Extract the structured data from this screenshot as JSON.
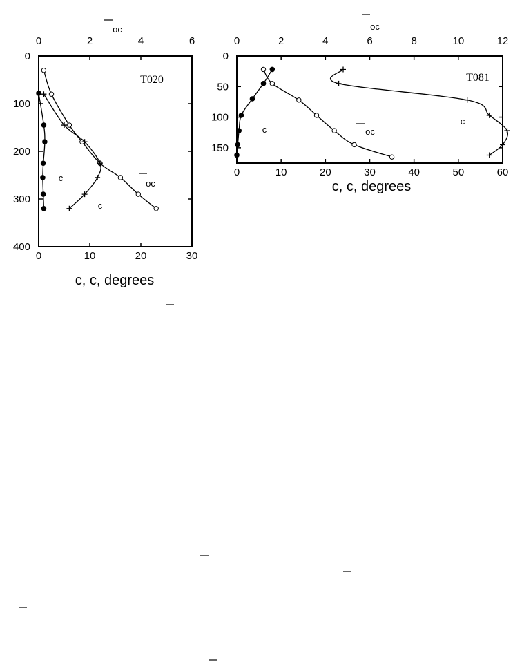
{
  "chart_data": [
    {
      "type": "line",
      "title": "T020",
      "x_bottom": {
        "label": "c,   c, degrees",
        "range": [
          0,
          30
        ],
        "ticks": [
          "0",
          "10",
          "20",
          "30"
        ]
      },
      "x_top": {
        "label": "oc",
        "range": [
          0,
          6
        ],
        "ticks": [
          "0",
          "2",
          "4",
          "6"
        ]
      },
      "y": {
        "range": [
          0,
          400
        ],
        "reversed": true,
        "ticks": [
          "0",
          "100",
          "200",
          "300",
          "400"
        ]
      },
      "series": [
        {
          "name": "oc",
          "axis": "top",
          "marker": "open-circle",
          "points": [
            [
              0.2,
              30
            ],
            [
              0.5,
              80
            ],
            [
              1.2,
              145
            ],
            [
              1.7,
              180
            ],
            [
              2.4,
              225
            ],
            [
              3.2,
              255
            ],
            [
              3.9,
              290
            ],
            [
              4.6,
              320
            ]
          ]
        },
        {
          "name": "c",
          "axis": "bottom",
          "marker": "plus",
          "points": [
            [
              1,
              80
            ],
            [
              5,
              145
            ],
            [
              9,
              180
            ],
            [
              12,
              225
            ],
            [
              11.5,
              255
            ],
            [
              9,
              290
            ],
            [
              6,
              320
            ]
          ]
        },
        {
          "axis": "bottom",
          "marker": "filled-circle",
          "points": [
            [
              0,
              78
            ],
            [
              1,
              145
            ],
            [
              1.2,
              180
            ],
            [
              0.9,
              225
            ],
            [
              0.8,
              255
            ],
            [
              0.9,
              290
            ],
            [
              1,
              320
            ]
          ]
        }
      ],
      "labels": [
        "c",
        "c",
        "oc"
      ]
    },
    {
      "type": "line",
      "title": "T081",
      "x_bottom": {
        "label": "c,   c, degrees",
        "range": [
          0,
          60
        ],
        "ticks": [
          "0",
          "10",
          "20",
          "30",
          "40",
          "50",
          "60"
        ]
      },
      "x_top": {
        "label": "oc",
        "range": [
          0,
          12
        ],
        "ticks": [
          "0",
          "2",
          "4",
          "6",
          "8",
          "10",
          "12"
        ]
      },
      "y": {
        "range": [
          0,
          175
        ],
        "reversed": true,
        "ticks": [
          "0",
          "50",
          "100",
          "150"
        ]
      },
      "series": [
        {
          "name": "oc",
          "axis": "top",
          "marker": "open-circle",
          "points": [
            [
              1.2,
              22
            ],
            [
              1.6,
              45
            ],
            [
              2.8,
              72
            ],
            [
              3.6,
              97
            ],
            [
              4.4,
              122
            ],
            [
              5.3,
              145
            ],
            [
              7.0,
              165
            ]
          ]
        },
        {
          "name": "c",
          "axis": "bottom",
          "marker": "plus",
          "points": [
            [
              24,
              22
            ],
            [
              23,
              45
            ],
            [
              52,
              72
            ],
            [
              57,
              97
            ],
            [
              61,
              122
            ],
            [
              60,
              145
            ],
            [
              57,
              162
            ]
          ]
        },
        {
          "axis": "bottom",
          "marker": "filled-circle",
          "points": [
            [
              8,
              22
            ],
            [
              6,
              45
            ],
            [
              3.5,
              70
            ],
            [
              1,
              97
            ],
            [
              0.5,
              122
            ],
            [
              0.2,
              145
            ],
            [
              0,
              162
            ]
          ]
        }
      ],
      "labels": [
        "c",
        "c",
        "oc"
      ]
    }
  ]
}
